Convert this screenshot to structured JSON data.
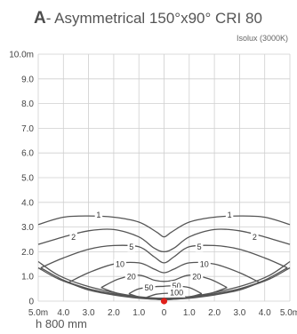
{
  "header": {
    "letter": "A",
    "title": "- Asymmetrical 150°x90° CRI 80",
    "subtitle": "Isolux (3000K)"
  },
  "footnote": "h 800 mm",
  "chart_data": {
    "type": "contour",
    "x_ticks": [
      "5.0m",
      "4.0",
      "3.0",
      "2.0",
      "1.0",
      "0",
      "1.0",
      "2.0",
      "3.0",
      "4.0",
      "5.0m"
    ],
    "y_ticks": [
      "0",
      "1.0",
      "2.0",
      "3.0",
      "4.0",
      "5.0",
      "6.0",
      "7.0",
      "8.0",
      "9.0",
      "10.0m"
    ],
    "xlim": [
      -5,
      5
    ],
    "ylim": [
      0,
      10
    ],
    "grid": true,
    "source_marker": {
      "x": 0,
      "y": 0,
      "color": "#e0201b"
    },
    "contours": [
      {
        "label": "1",
        "label_positions": [
          [
            -2.6,
            3.5
          ],
          [
            2.6,
            3.5
          ]
        ],
        "upper": [
          [
            -5,
            3.1
          ],
          [
            -4,
            3.4
          ],
          [
            -3,
            3.45
          ],
          [
            -2,
            3.4
          ],
          [
            -1,
            3.2
          ],
          [
            -0.3,
            2.8
          ],
          [
            0,
            2.6
          ],
          [
            0.3,
            2.8
          ],
          [
            1,
            3.2
          ],
          [
            2,
            3.4
          ],
          [
            3,
            3.45
          ],
          [
            4,
            3.4
          ],
          [
            5,
            3.1
          ]
        ],
        "lower": [
          [
            -5,
            1.6
          ],
          [
            -4.2,
            1.05
          ],
          [
            -3.2,
            0.65
          ],
          [
            -2,
            0.35
          ],
          [
            -1,
            0.18
          ],
          [
            0,
            0.12
          ],
          [
            1,
            0.18
          ],
          [
            2,
            0.35
          ],
          [
            3.2,
            0.65
          ],
          [
            4.2,
            1.05
          ],
          [
            5,
            1.6
          ]
        ]
      },
      {
        "label": "2",
        "label_positions": [
          [
            -3.6,
            2.6
          ],
          [
            3.6,
            2.6
          ]
        ],
        "upper": [
          [
            -5,
            2.3
          ],
          [
            -4,
            2.6
          ],
          [
            -3,
            2.85
          ],
          [
            -2,
            2.9
          ],
          [
            -1,
            2.6
          ],
          [
            -0.4,
            2.15
          ],
          [
            0,
            2.0
          ],
          [
            0.4,
            2.15
          ],
          [
            1,
            2.6
          ],
          [
            2,
            2.9
          ],
          [
            3,
            2.85
          ],
          [
            4,
            2.6
          ],
          [
            5,
            2.3
          ]
        ],
        "lower": [
          [
            -5,
            1.35
          ],
          [
            -4.2,
            0.9
          ],
          [
            -3.2,
            0.55
          ],
          [
            -2,
            0.3
          ],
          [
            -1,
            0.16
          ],
          [
            0,
            0.1
          ],
          [
            1,
            0.16
          ],
          [
            2,
            0.3
          ],
          [
            3.2,
            0.55
          ],
          [
            4.2,
            0.9
          ],
          [
            5,
            1.35
          ]
        ]
      },
      {
        "label": "5",
        "label_positions": [
          [
            -1.3,
            2.2
          ],
          [
            1.4,
            2.2
          ]
        ],
        "upper": [
          [
            -4.9,
            1.35
          ],
          [
            -4,
            1.75
          ],
          [
            -3,
            2.1
          ],
          [
            -2,
            2.25
          ],
          [
            -1,
            2.2
          ],
          [
            -0.4,
            1.8
          ],
          [
            0,
            1.55
          ],
          [
            0.4,
            1.8
          ],
          [
            1,
            2.2
          ],
          [
            2,
            2.25
          ],
          [
            3,
            2.1
          ],
          [
            4,
            1.75
          ],
          [
            4.9,
            1.35
          ]
        ],
        "lower": [
          [
            -4.9,
            1.35
          ],
          [
            -4,
            0.85
          ],
          [
            -3,
            0.5
          ],
          [
            -2,
            0.28
          ],
          [
            -1,
            0.15
          ],
          [
            0,
            0.1
          ],
          [
            1,
            0.15
          ],
          [
            2,
            0.28
          ],
          [
            3,
            0.5
          ],
          [
            4,
            0.85
          ],
          [
            4.9,
            1.35
          ]
        ]
      },
      {
        "label": "10",
        "label_positions": [
          [
            -1.75,
            1.5
          ],
          [
            1.6,
            1.5
          ]
        ],
        "upper": [
          [
            -3.8,
            0.75
          ],
          [
            -3,
            1.15
          ],
          [
            -2,
            1.5
          ],
          [
            -1,
            1.55
          ],
          [
            -0.4,
            1.3
          ],
          [
            0,
            1.15
          ],
          [
            0.4,
            1.3
          ],
          [
            1,
            1.55
          ],
          [
            2,
            1.5
          ],
          [
            3,
            1.15
          ],
          [
            3.8,
            0.75
          ]
        ],
        "lower": [
          [
            -3.8,
            0.75
          ],
          [
            -3,
            0.45
          ],
          [
            -2,
            0.25
          ],
          [
            -1,
            0.12
          ],
          [
            0,
            0.08
          ],
          [
            1,
            0.12
          ],
          [
            2,
            0.25
          ],
          [
            3,
            0.45
          ],
          [
            3.8,
            0.75
          ]
        ]
      },
      {
        "label": "20",
        "label_positions": [
          [
            -1.3,
            1.0
          ],
          [
            1.3,
            1.0
          ]
        ],
        "upper": [
          [
            -2.5,
            0.55
          ],
          [
            -1.8,
            0.9
          ],
          [
            -1,
            1.05
          ],
          [
            -0.4,
            0.85
          ],
          [
            0,
            0.8
          ],
          [
            0.4,
            0.85
          ],
          [
            1,
            1.05
          ],
          [
            1.8,
            0.9
          ],
          [
            2.5,
            0.55
          ]
        ],
        "lower": [
          [
            -2.5,
            0.55
          ],
          [
            -1.8,
            0.3
          ],
          [
            -1,
            0.15
          ],
          [
            0,
            0.08
          ],
          [
            1,
            0.15
          ],
          [
            1.8,
            0.3
          ],
          [
            2.5,
            0.55
          ]
        ]
      },
      {
        "label": "50",
        "label_positions": [
          [
            -0.6,
            0.55
          ],
          [
            0.5,
            0.62
          ]
        ],
        "upper": [
          [
            -1.4,
            0.3
          ],
          [
            -1,
            0.5
          ],
          [
            -0.4,
            0.58
          ],
          [
            0,
            0.6
          ],
          [
            0.4,
            0.62
          ],
          [
            1,
            0.55
          ],
          [
            1.5,
            0.3
          ]
        ],
        "lower": [
          [
            -1.4,
            0.3
          ],
          [
            -0.8,
            0.12
          ],
          [
            0,
            0.07
          ],
          [
            0.8,
            0.12
          ],
          [
            1.5,
            0.3
          ]
        ]
      },
      {
        "label": "100",
        "label_positions": [
          [
            0.5,
            0.35
          ]
        ],
        "upper": [
          [
            -0.7,
            0.15
          ],
          [
            -0.3,
            0.28
          ],
          [
            0.2,
            0.32
          ],
          [
            0.6,
            0.3
          ],
          [
            0.9,
            0.15
          ]
        ],
        "lower": [
          [
            -0.7,
            0.15
          ],
          [
            0,
            0.05
          ],
          [
            0.9,
            0.15
          ]
        ]
      }
    ]
  }
}
